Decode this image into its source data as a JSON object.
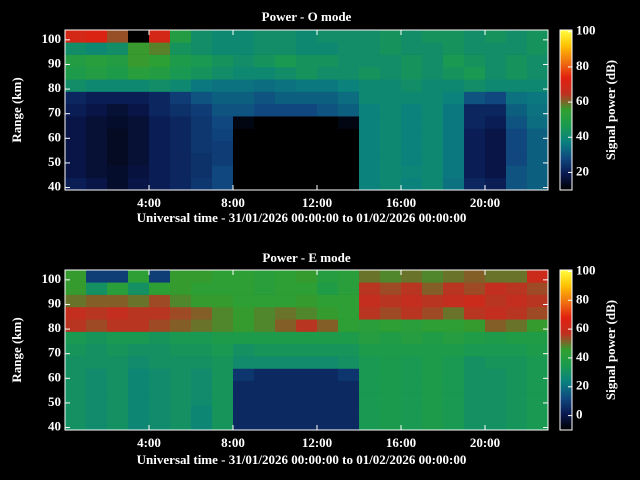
{
  "chart_data": [
    {
      "type": "heatmap",
      "title": "Power - O mode",
      "xlabel": "Universal time - 31/01/2026 00:00:00 to 01/02/2026 00:00:00",
      "ylabel": "Range (km)",
      "colorbar_label": "Signal power (dB)",
      "x_bins": [
        0,
        1,
        2,
        3,
        4,
        5,
        6,
        7,
        8,
        9,
        10,
        11,
        12,
        13,
        14,
        15,
        16,
        17,
        18,
        19,
        20,
        21,
        22,
        23
      ],
      "y_bins": [
        39,
        44,
        49,
        54,
        59,
        64,
        69,
        74,
        79,
        84,
        89,
        94,
        99,
        104
      ],
      "z": [
        [
          20,
          18,
          15,
          18,
          20,
          22,
          25,
          28,
          10,
          10,
          10,
          10,
          10,
          10,
          38,
          40,
          38,
          40,
          35,
          22,
          20,
          30,
          32
        ],
        [
          18,
          16,
          15,
          17,
          20,
          22,
          24,
          28,
          10,
          10,
          10,
          10,
          10,
          10,
          38,
          40,
          39,
          40,
          36,
          20,
          18,
          30,
          32
        ],
        [
          18,
          16,
          14,
          16,
          20,
          22,
          24,
          26,
          10,
          10,
          10,
          10,
          10,
          10,
          38,
          40,
          38,
          40,
          36,
          20,
          18,
          28,
          32
        ],
        [
          18,
          16,
          14,
          16,
          20,
          22,
          25,
          26,
          10,
          10,
          10,
          10,
          10,
          10,
          38,
          40,
          38,
          40,
          36,
          20,
          18,
          28,
          32
        ],
        [
          18,
          16,
          14,
          16,
          20,
          22,
          25,
          27,
          10,
          10,
          10,
          10,
          10,
          10,
          38,
          40,
          38,
          40,
          36,
          20,
          18,
          28,
          32
        ],
        [
          18,
          16,
          15,
          16,
          20,
          22,
          25,
          28,
          12,
          10,
          10,
          10,
          10,
          12,
          38,
          40,
          38,
          40,
          36,
          22,
          20,
          30,
          34
        ],
        [
          20,
          18,
          16,
          18,
          22,
          24,
          26,
          30,
          30,
          28,
          28,
          28,
          30,
          32,
          38,
          40,
          38,
          40,
          36,
          22,
          22,
          32,
          35
        ],
        [
          22,
          20,
          20,
          20,
          22,
          26,
          30,
          32,
          32,
          30,
          32,
          32,
          32,
          34,
          40,
          40,
          40,
          40,
          38,
          30,
          28,
          35,
          36
        ],
        [
          42,
          40,
          40,
          40,
          42,
          40,
          36,
          35,
          35,
          34,
          35,
          36,
          36,
          38,
          40,
          40,
          42,
          40,
          40,
          42,
          40,
          40,
          40
        ],
        [
          48,
          50,
          48,
          52,
          50,
          46,
          44,
          42,
          40,
          40,
          42,
          44,
          42,
          42,
          44,
          42,
          44,
          42,
          44,
          46,
          42,
          44,
          42
        ],
        [
          50,
          52,
          50,
          56,
          54,
          48,
          46,
          44,
          42,
          44,
          46,
          44,
          44,
          42,
          42,
          42,
          44,
          42,
          46,
          44,
          42,
          44,
          42
        ],
        [
          42,
          40,
          42,
          56,
          58,
          44,
          42,
          40,
          40,
          42,
          42,
          40,
          40,
          42,
          42,
          44,
          42,
          42,
          44,
          42,
          42,
          42,
          44
        ],
        [
          70,
          72,
          62,
          10,
          70,
          50,
          42,
          40,
          40,
          42,
          42,
          40,
          42,
          42,
          42,
          44,
          42,
          44,
          44,
          42,
          44,
          42,
          44
        ]
      ],
      "xlim": [
        0,
        23
      ],
      "ylim": [
        39,
        104
      ],
      "xticks": [
        {
          "value": 4,
          "label": "4:00"
        },
        {
          "value": 8,
          "label": "8:00"
        },
        {
          "value": 12,
          "label": "12:00"
        },
        {
          "value": 16,
          "label": "16:00"
        },
        {
          "value": 20,
          "label": "20:00"
        }
      ],
      "yticks": [
        40,
        50,
        60,
        70,
        80,
        90,
        100
      ],
      "clim": [
        10,
        101
      ],
      "cticks": [
        20,
        40,
        60,
        80,
        100
      ],
      "colormap": [
        "#000000",
        "#0a1850",
        "#104880",
        "#0a8080",
        "#1a9a50",
        "#30a030",
        "#c03020",
        "#e02010",
        "#f07010",
        "#ffc000",
        "#ffff40"
      ]
    },
    {
      "type": "heatmap",
      "title": "Power - E mode",
      "xlabel": "Universal time - 31/01/2026 00:00:00 to 01/02/2026 00:00:00",
      "ylabel": "Range (km)",
      "colorbar_label": "Signal power (dB)",
      "x_bins": [
        0,
        1,
        2,
        3,
        4,
        5,
        6,
        7,
        8,
        9,
        10,
        11,
        12,
        13,
        14,
        15,
        16,
        17,
        18,
        19,
        20,
        21,
        22,
        23
      ],
      "y_bins": [
        39,
        44,
        49,
        54,
        59,
        64,
        69,
        74,
        79,
        84,
        89,
        94,
        99,
        104
      ],
      "z": [
        [
          30,
          28,
          30,
          26,
          28,
          30,
          26,
          32,
          5,
          5,
          5,
          5,
          5,
          5,
          34,
          35,
          34,
          36,
          34,
          30,
          30,
          32,
          34
        ],
        [
          30,
          28,
          30,
          26,
          28,
          30,
          26,
          32,
          5,
          5,
          5,
          5,
          5,
          5,
          34,
          35,
          34,
          36,
          34,
          30,
          30,
          32,
          34
        ],
        [
          30,
          28,
          30,
          26,
          28,
          30,
          28,
          32,
          5,
          5,
          5,
          5,
          5,
          5,
          34,
          35,
          34,
          36,
          34,
          30,
          30,
          32,
          34
        ],
        [
          30,
          28,
          30,
          26,
          28,
          30,
          28,
          32,
          5,
          5,
          5,
          5,
          5,
          5,
          34,
          35,
          34,
          36,
          34,
          30,
          30,
          32,
          34
        ],
        [
          30,
          28,
          30,
          26,
          28,
          30,
          28,
          32,
          8,
          5,
          5,
          5,
          5,
          8,
          34,
          35,
          34,
          36,
          34,
          30,
          30,
          32,
          34
        ],
        [
          30,
          30,
          30,
          28,
          30,
          30,
          30,
          32,
          28,
          28,
          28,
          28,
          28,
          30,
          34,
          35,
          34,
          36,
          34,
          30,
          32,
          32,
          34
        ],
        [
          32,
          30,
          32,
          30,
          30,
          32,
          32,
          34,
          30,
          32,
          32,
          32,
          32,
          32,
          36,
          36,
          36,
          36,
          36,
          34,
          34,
          34,
          36
        ],
        [
          34,
          32,
          34,
          34,
          32,
          34,
          34,
          36,
          36,
          36,
          36,
          36,
          36,
          36,
          40,
          38,
          40,
          38,
          40,
          38,
          36,
          38,
          38
        ],
        [
          56,
          54,
          56,
          56,
          54,
          52,
          50,
          48,
          46,
          48,
          52,
          56,
          52,
          44,
          42,
          44,
          42,
          44,
          44,
          46,
          52,
          50,
          46
        ],
        [
          58,
          56,
          58,
          56,
          56,
          54,
          52,
          48,
          46,
          48,
          50,
          48,
          46,
          44,
          56,
          54,
          56,
          54,
          50,
          56,
          58,
          56,
          54
        ],
        [
          50,
          52,
          52,
          50,
          54,
          48,
          46,
          46,
          44,
          44,
          44,
          46,
          44,
          44,
          58,
          56,
          58,
          56,
          58,
          60,
          56,
          58,
          56
        ],
        [
          46,
          30,
          42,
          30,
          44,
          46,
          44,
          44,
          44,
          42,
          44,
          44,
          38,
          42,
          56,
          54,
          56,
          52,
          56,
          54,
          58,
          56,
          54
        ],
        [
          46,
          10,
          10,
          44,
          10,
          46,
          46,
          44,
          44,
          42,
          44,
          46,
          40,
          42,
          50,
          48,
          50,
          48,
          50,
          52,
          50,
          50,
          60
        ]
      ],
      "xlim": [
        0,
        23
      ],
      "ylim": [
        39,
        104
      ],
      "xticks": [
        {
          "value": 4,
          "label": "4:00"
        },
        {
          "value": 8,
          "label": "8:00"
        },
        {
          "value": 12,
          "label": "12:00"
        },
        {
          "value": 16,
          "label": "16:00"
        },
        {
          "value": 20,
          "label": "20:00"
        }
      ],
      "yticks": [
        40,
        50,
        60,
        70,
        80,
        90,
        100
      ],
      "clim": [
        -10,
        101
      ],
      "cticks": [
        0,
        20,
        40,
        60,
        80,
        100
      ],
      "colormap": [
        "#000000",
        "#0a1850",
        "#104880",
        "#0a8080",
        "#1a9a50",
        "#30a030",
        "#c03020",
        "#e02010",
        "#f07010",
        "#ffc000",
        "#ffff40"
      ]
    }
  ]
}
